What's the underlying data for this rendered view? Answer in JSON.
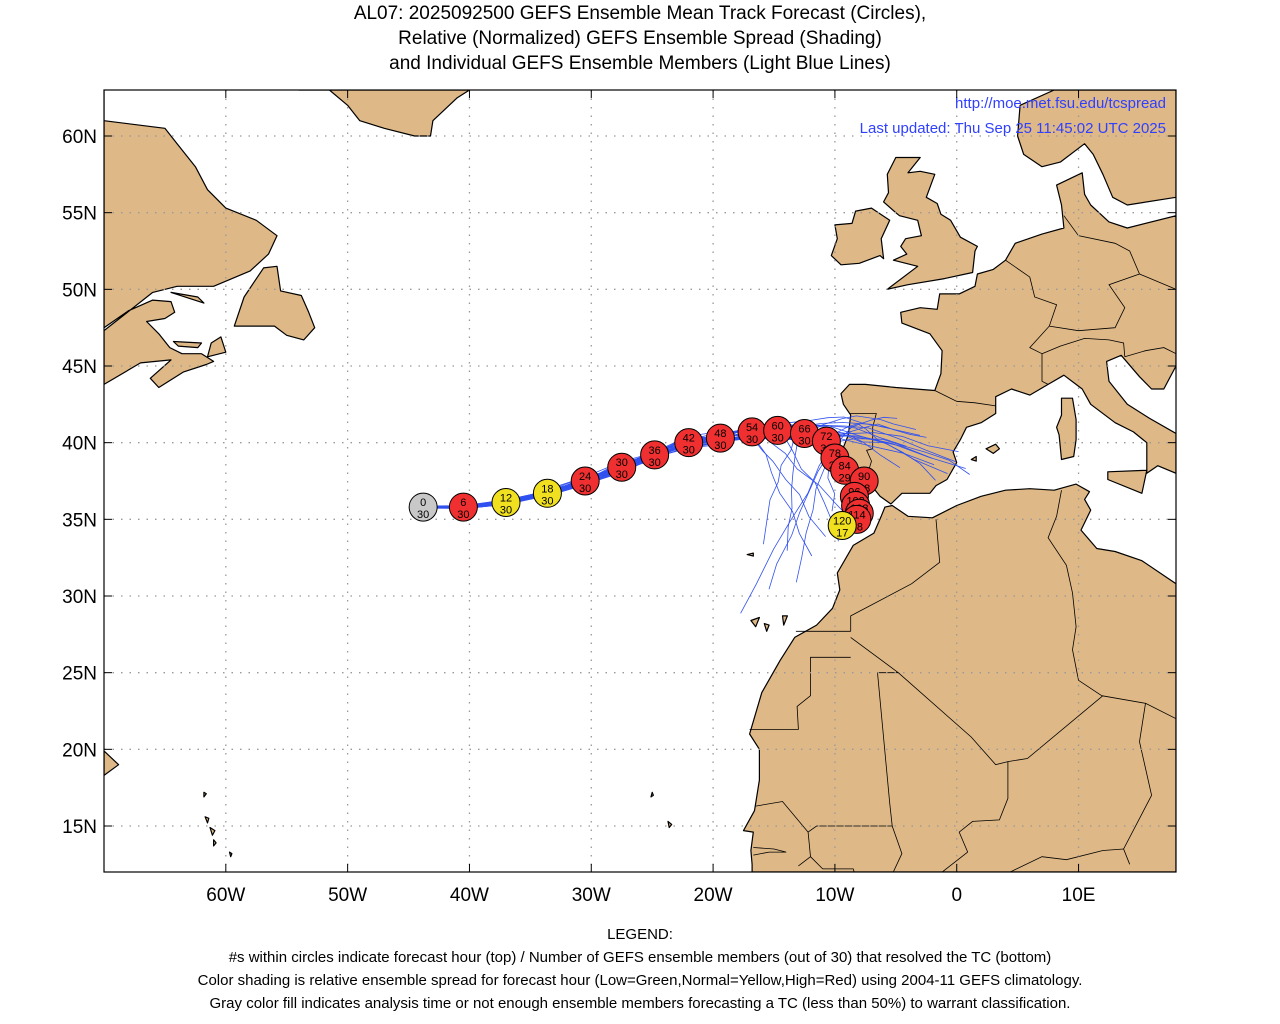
{
  "title": {
    "line1": "AL07: 2025092500 GEFS Ensemble Mean Track Forecast (Circles),",
    "line2": "Relative (Normalized) GEFS Ensemble Spread (Shading)",
    "line3": "and Individual GEFS Ensemble Members (Light Blue Lines)"
  },
  "header_info": {
    "url": "http://moe.met.fsu.edu/tcspread",
    "updated": "Last updated: Thu Sep 25 11:45:02 UTC 2025"
  },
  "map": {
    "lon_range": [
      -70,
      18
    ],
    "lat_range": [
      12,
      63
    ],
    "lat_ticks": [
      {
        "value": 15,
        "label": "15N"
      },
      {
        "value": 20,
        "label": "20N"
      },
      {
        "value": 25,
        "label": "25N"
      },
      {
        "value": 30,
        "label": "30N"
      },
      {
        "value": 35,
        "label": "35N"
      },
      {
        "value": 40,
        "label": "40N"
      },
      {
        "value": 45,
        "label": "45N"
      },
      {
        "value": 50,
        "label": "50N"
      },
      {
        "value": 55,
        "label": "55N"
      },
      {
        "value": 60,
        "label": "60N"
      }
    ],
    "lon_ticks": [
      {
        "value": -60,
        "label": "60W"
      },
      {
        "value": -50,
        "label": "50W"
      },
      {
        "value": -40,
        "label": "40W"
      },
      {
        "value": -30,
        "label": "30W"
      },
      {
        "value": -20,
        "label": "20W"
      },
      {
        "value": -10,
        "label": "10W"
      },
      {
        "value": 0,
        "label": "0"
      },
      {
        "value": 10,
        "label": "10E"
      }
    ],
    "colors": {
      "land": "#deb887",
      "ocean": "#ffffff",
      "grid": "#999999",
      "member_lines": "#3050f0",
      "spread_low": "#30c030",
      "spread_normal": "#f0e020",
      "spread_high": "#f03030",
      "unclassified": "#c8c8c8"
    }
  },
  "track": [
    {
      "hour": "0",
      "members": "30",
      "lon": -43.8,
      "lat": 35.8,
      "spread": "gray"
    },
    {
      "hour": "6",
      "members": "30",
      "lon": -40.5,
      "lat": 35.8,
      "spread": "high"
    },
    {
      "hour": "12",
      "members": "30",
      "lon": -37.0,
      "lat": 36.1,
      "spread": "normal"
    },
    {
      "hour": "18",
      "members": "30",
      "lon": -33.6,
      "lat": 36.7,
      "spread": "normal"
    },
    {
      "hour": "24",
      "members": "30",
      "lon": -30.5,
      "lat": 37.5,
      "spread": "high"
    },
    {
      "hour": "30",
      "members": "30",
      "lon": -27.5,
      "lat": 38.4,
      "spread": "high"
    },
    {
      "hour": "36",
      "members": "30",
      "lon": -24.8,
      "lat": 39.2,
      "spread": "high"
    },
    {
      "hour": "42",
      "members": "30",
      "lon": -22.0,
      "lat": 40.0,
      "spread": "high"
    },
    {
      "hour": "48",
      "members": "30",
      "lon": -19.4,
      "lat": 40.3,
      "spread": "high"
    },
    {
      "hour": "54",
      "members": "30",
      "lon": -16.8,
      "lat": 40.7,
      "spread": "high"
    },
    {
      "hour": "60",
      "members": "30",
      "lon": -14.7,
      "lat": 40.8,
      "spread": "high"
    },
    {
      "hour": "66",
      "members": "30",
      "lon": -12.5,
      "lat": 40.6,
      "spread": "high"
    },
    {
      "hour": "72",
      "members": "30",
      "lon": -10.7,
      "lat": 40.1,
      "spread": "high"
    },
    {
      "hour": "78",
      "members": "29",
      "lon": -10.0,
      "lat": 39.0,
      "spread": "high"
    },
    {
      "hour": "84",
      "members": "29",
      "lon": -9.2,
      "lat": 38.2,
      "spread": "high"
    },
    {
      "hour": "90",
      "members": "28",
      "lon": -7.6,
      "lat": 37.5,
      "spread": "high"
    },
    {
      "hour": "96",
      "members": "28",
      "lon": -8.4,
      "lat": 36.5,
      "spread": "high"
    },
    {
      "hour": "102",
      "members": "28",
      "lon": -8.3,
      "lat": 35.9,
      "spread": "high"
    },
    {
      "hour": "108",
      "members": "28",
      "lon": -8.0,
      "lat": 35.4,
      "spread": "high"
    },
    {
      "hour": "114",
      "members": "28",
      "lon": -8.2,
      "lat": 35.0,
      "spread": "high"
    },
    {
      "hour": "120",
      "members": "17",
      "lon": -9.4,
      "lat": 34.6,
      "spread": "normal"
    }
  ],
  "legend": {
    "heading": "LEGEND:",
    "line1": "#s within circles indicate forecast hour (top) / Number of GEFS ensemble members (out of 30) that resolved the TC (bottom)",
    "line2": "Color shading is relative ensemble spread for forecast hour (Low=Green,Normal=Yellow,High=Red) using 2004-11 GEFS climatology.",
    "line3": "Gray color fill indicates analysis time or not enough ensemble members forecasting a TC (less than 50%) to warrant classification."
  }
}
